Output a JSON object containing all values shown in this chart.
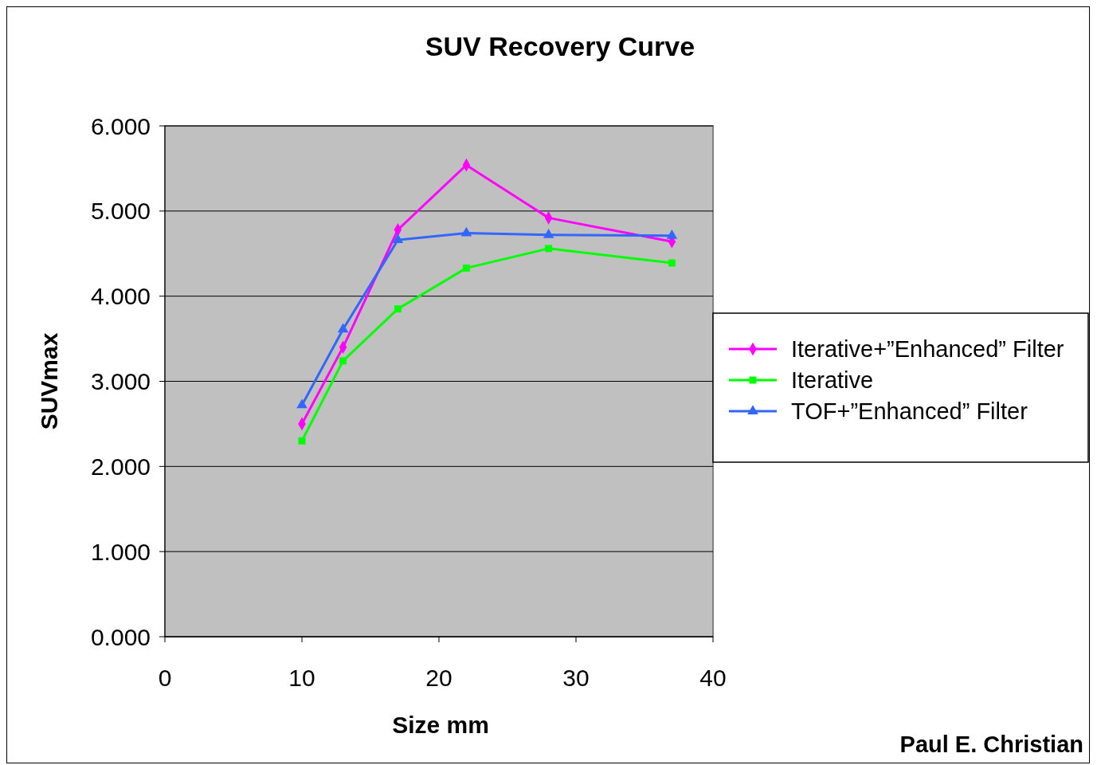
{
  "chart_data": {
    "type": "line",
    "title": "SUV Recovery Curve",
    "xlabel": "Size mm",
    "ylabel": "SUVmax",
    "x": [
      10,
      13,
      17,
      22,
      28,
      37
    ],
    "series": [
      {
        "name": "Iterative+”Enhanced” Filter",
        "color": "#ff00ff",
        "marker": "diamond",
        "values": [
          2.5,
          3.4,
          4.78,
          5.54,
          4.92,
          4.64
        ]
      },
      {
        "name": "Iterative",
        "color": "#00ff00",
        "marker": "square",
        "values": [
          2.3,
          3.24,
          3.85,
          4.33,
          4.56,
          4.39
        ]
      },
      {
        "name": "TOF+”Enhanced” Filter",
        "color": "#3366ff",
        "marker": "triangle",
        "values": [
          2.72,
          3.61,
          4.66,
          4.74,
          4.72,
          4.71
        ]
      }
    ],
    "xlim": [
      0,
      40
    ],
    "xticks": [
      0,
      10,
      20,
      30,
      40
    ],
    "ylim": [
      0,
      6
    ],
    "yticks": [
      {
        "value": 0,
        "label": "0.000"
      },
      {
        "value": 1,
        "label": "1.000"
      },
      {
        "value": 2,
        "label": "2.000"
      },
      {
        "value": 3,
        "label": "3.000"
      },
      {
        "value": 4,
        "label": "4.000"
      },
      {
        "value": 5,
        "label": "5.000"
      },
      {
        "value": 6,
        "label": "6.000"
      }
    ],
    "grid": "y",
    "legend": "right",
    "line_style": "solid",
    "annotations": [
      "Paul E. Christian"
    ]
  }
}
